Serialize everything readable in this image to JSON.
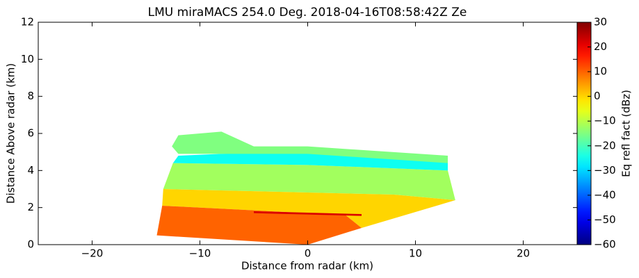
{
  "chart_data": {
    "type": "rhi",
    "title": "LMU miraMACS 254.0 Deg. 2018-04-16T08:58:42Z  Ze",
    "x_label": "Distance from radar (km)",
    "y_label": "Distance Above radar  (km)",
    "xlim": [
      -25,
      25
    ],
    "ylim": [
      0,
      12
    ],
    "xticks": [
      {
        "value": -20,
        "label": "−20"
      },
      {
        "value": -10,
        "label": "−10"
      },
      0,
      10,
      20
    ],
    "yticks": [
      0,
      2,
      4,
      6,
      8,
      10,
      12
    ],
    "colorbar": {
      "label": "Eq refl fact (dBz)",
      "colormap": "jet",
      "lim": [
        -60,
        30
      ],
      "ticks": [
        {
          "value": -60,
          "label": "−60"
        },
        {
          "value": -50,
          "label": "−50"
        },
        {
          "value": -40,
          "label": "−40"
        },
        {
          "value": -30,
          "label": "−30"
        },
        {
          "value": -20,
          "label": "−20"
        },
        {
          "value": -10,
          "label": "−10"
        },
        0,
        10,
        20,
        30
      ]
    },
    "regions": [
      {
        "x": [
          -13.4,
          -12.5,
          0,
          13,
          13.7,
          8,
          -13.4
        ],
        "y": [
          3.0,
          4.4,
          4.3,
          4.0,
          2.4,
          2.7,
          3.0
        ],
        "value": -12
      },
      {
        "x": [
          -12.5,
          0,
          13,
          13,
          0,
          -12
        ],
        "y": [
          4.4,
          4.3,
          4.0,
          4.7,
          5.1,
          4.8
        ],
        "value": -25
      },
      {
        "x": [
          -12.6,
          -12,
          -8,
          -5,
          0,
          13,
          13,
          0,
          -12
        ],
        "y": [
          5.3,
          5.9,
          6.1,
          5.3,
          5.3,
          4.8,
          4.4,
          4.9,
          4.9
        ],
        "value": -15
      },
      {
        "x": [
          -13.5,
          3.5,
          5,
          13.7,
          8,
          -13.4
        ],
        "y": [
          2.1,
          1.6,
          0.9,
          2.4,
          2.7,
          3.0
        ],
        "value": 0
      },
      {
        "x": [
          -14,
          0,
          5,
          3.5,
          -13.5
        ],
        "y": [
          0.5,
          0,
          0.9,
          1.6,
          2.1
        ],
        "value": 10
      },
      {
        "x": [
          -5,
          5,
          5,
          -5
        ],
        "y": [
          1.8,
          1.65,
          1.55,
          1.7
        ],
        "value": 22
      }
    ]
  }
}
